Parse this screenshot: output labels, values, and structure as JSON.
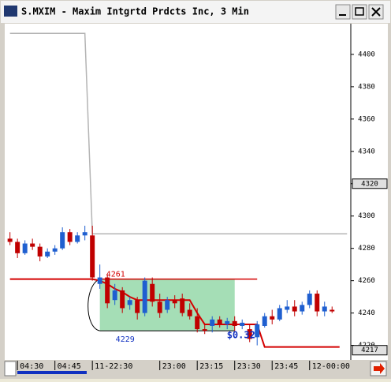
{
  "window": {
    "title": "S.MXIM - Maxim Intgrtd Prdcts Inc, 3 Min"
  },
  "chart_data": {
    "type": "candlestick",
    "up_color": "#1f5fd0",
    "down_color": "#c00000",
    "ylim": [
      4211,
      4419
    ],
    "yticks": [
      4220,
      4240,
      4260,
      4280,
      4300,
      4320,
      4340,
      4360,
      4380,
      4400
    ],
    "xlim": [
      -0.7,
      45.5
    ],
    "xticks": [
      {
        "value": 1,
        "label": "04:30"
      },
      {
        "value": 6,
        "label": "04:45"
      },
      {
        "value": 11,
        "label": "11-22:30"
      },
      {
        "value": 20,
        "label": "23:00"
      },
      {
        "value": 25,
        "label": "23:15"
      },
      {
        "value": 30,
        "label": "23:30"
      },
      {
        "value": 35,
        "label": "23:45"
      },
      {
        "value": 40,
        "label": "12-00:00"
      }
    ],
    "candles": [
      {
        "open": 4286,
        "high": 4290,
        "low": 4282,
        "close": 4284
      },
      {
        "open": 4284,
        "high": 4286,
        "low": 4274,
        "close": 4277
      },
      {
        "open": 4277,
        "high": 4285,
        "low": 4276,
        "close": 4283
      },
      {
        "open": 4283,
        "high": 4286,
        "low": 4279,
        "close": 4281
      },
      {
        "open": 4281,
        "high": 4283,
        "low": 4272,
        "close": 4275
      },
      {
        "open": 4275,
        "high": 4280,
        "low": 4274,
        "close": 4278
      },
      {
        "open": 4278,
        "high": 4282,
        "low": 4276,
        "close": 4280
      },
      {
        "open": 4280,
        "high": 4293,
        "low": 4279,
        "close": 4290
      },
      {
        "open": 4290,
        "high": 4292,
        "low": 4282,
        "close": 4284
      },
      {
        "open": 4284,
        "high": 4290,
        "low": 4283,
        "close": 4288
      },
      {
        "open": 4288,
        "high": 4294,
        "low": 4285,
        "close": 4290
      },
      {
        "open": 4288,
        "high": 4294,
        "low": 4260,
        "close": 4262
      },
      {
        "open": 4258,
        "high": 4270,
        "low": 4255,
        "close": 4262
      },
      {
        "open": 4262,
        "high": 4264,
        "low": 4243,
        "close": 4246
      },
      {
        "open": 4248,
        "high": 4258,
        "low": 4245,
        "close": 4254
      },
      {
        "open": 4254,
        "high": 4256,
        "low": 4240,
        "close": 4243
      },
      {
        "open": 4245,
        "high": 4250,
        "low": 4242,
        "close": 4248
      },
      {
        "open": 4248,
        "high": 4250,
        "low": 4236,
        "close": 4240
      },
      {
        "open": 4240,
        "high": 4262,
        "low": 4238,
        "close": 4260
      },
      {
        "open": 4258,
        "high": 4262,
        "low": 4244,
        "close": 4247
      },
      {
        "open": 4247,
        "high": 4252,
        "low": 4237,
        "close": 4240
      },
      {
        "open": 4242,
        "high": 4250,
        "low": 4240,
        "close": 4248
      },
      {
        "open": 4248,
        "high": 4251,
        "low": 4243,
        "close": 4246
      },
      {
        "open": 4249,
        "high": 4252,
        "low": 4238,
        "close": 4240
      },
      {
        "open": 4242,
        "high": 4246,
        "low": 4236,
        "close": 4238
      },
      {
        "open": 4238,
        "high": 4243,
        "low": 4228,
        "close": 4230
      },
      {
        "open": 4230,
        "high": 4233,
        "low": 4227,
        "close": 4229
      },
      {
        "open": 4232,
        "high": 4238,
        "low": 4228,
        "close": 4236
      },
      {
        "open": 4236,
        "high": 4238,
        "low": 4231,
        "close": 4233
      },
      {
        "open": 4233,
        "high": 4237,
        "low": 4230,
        "close": 4235
      },
      {
        "open": 4235,
        "high": 4238,
        "low": 4229,
        "close": 4232
      },
      {
        "open": 4232,
        "high": 4236,
        "low": 4230,
        "close": 4234
      },
      {
        "open": 4230,
        "high": 4233,
        "low": 4222,
        "close": 4224
      },
      {
        "open": 4225,
        "high": 4235,
        "low": 4220,
        "close": 4233
      },
      {
        "open": 4232,
        "high": 4240,
        "low": 4231,
        "close": 4238
      },
      {
        "open": 4238,
        "high": 4242,
        "low": 4233,
        "close": 4236
      },
      {
        "open": 4236,
        "high": 4245,
        "low": 4235,
        "close": 4243
      },
      {
        "open": 4242,
        "high": 4248,
        "low": 4240,
        "close": 4244
      },
      {
        "open": 4244,
        "high": 4248,
        "low": 4238,
        "close": 4241
      },
      {
        "open": 4241,
        "high": 4247,
        "low": 4239,
        "close": 4245
      },
      {
        "open": 4245,
        "high": 4254,
        "low": 4243,
        "close": 4252
      },
      {
        "open": 4252,
        "high": 4254,
        "low": 4238,
        "close": 4241
      },
      {
        "open": 4241,
        "high": 4247,
        "low": 4238,
        "close": 4244
      },
      {
        "open": 4242,
        "high": 4244,
        "low": 4240,
        "close": 4241
      }
    ],
    "series": [
      {
        "color": "#b4b4b4",
        "values": [
          4413,
          4413,
          4413,
          4413,
          4413,
          4413,
          4413,
          4413,
          4413,
          4413,
          4413,
          4289,
          4289,
          4289,
          4289,
          4289,
          4289,
          4289,
          4289,
          4289,
          4289,
          4289,
          4289,
          4289,
          4289,
          4289,
          4289,
          4289,
          4289,
          4289,
          4289,
          4289,
          4289,
          4289,
          4289,
          4289,
          4289,
          4289,
          4289,
          4289,
          4289,
          4289,
          4289,
          4289,
          4289,
          4289
        ]
      },
      {
        "color": "#d40000",
        "values": [
          4261,
          4261,
          4261,
          4261,
          4261,
          4261,
          4261,
          4261,
          4261,
          4261,
          4261,
          4261,
          4260,
          4258,
          4255,
          4253,
          4250,
          4248,
          4248,
          4248,
          4248,
          4248,
          4248,
          4248,
          4248,
          4240,
          4233,
          4233,
          4233,
          4233,
          4233,
          4233,
          4233,
          4233,
          4219,
          4219,
          4219,
          4219,
          4219,
          4219,
          4219,
          4219,
          4219,
          4219,
          4219
        ]
      }
    ],
    "trade": {
      "entry": 4261,
      "entry_label": "4261",
      "exit": 4229,
      "exit_label": "4229",
      "start": 12,
      "end": 30,
      "target_end": 33,
      "profit_label": "$0.32",
      "box_color": "#8fd6a4"
    },
    "price_markers": [
      4320,
      4217
    ]
  }
}
